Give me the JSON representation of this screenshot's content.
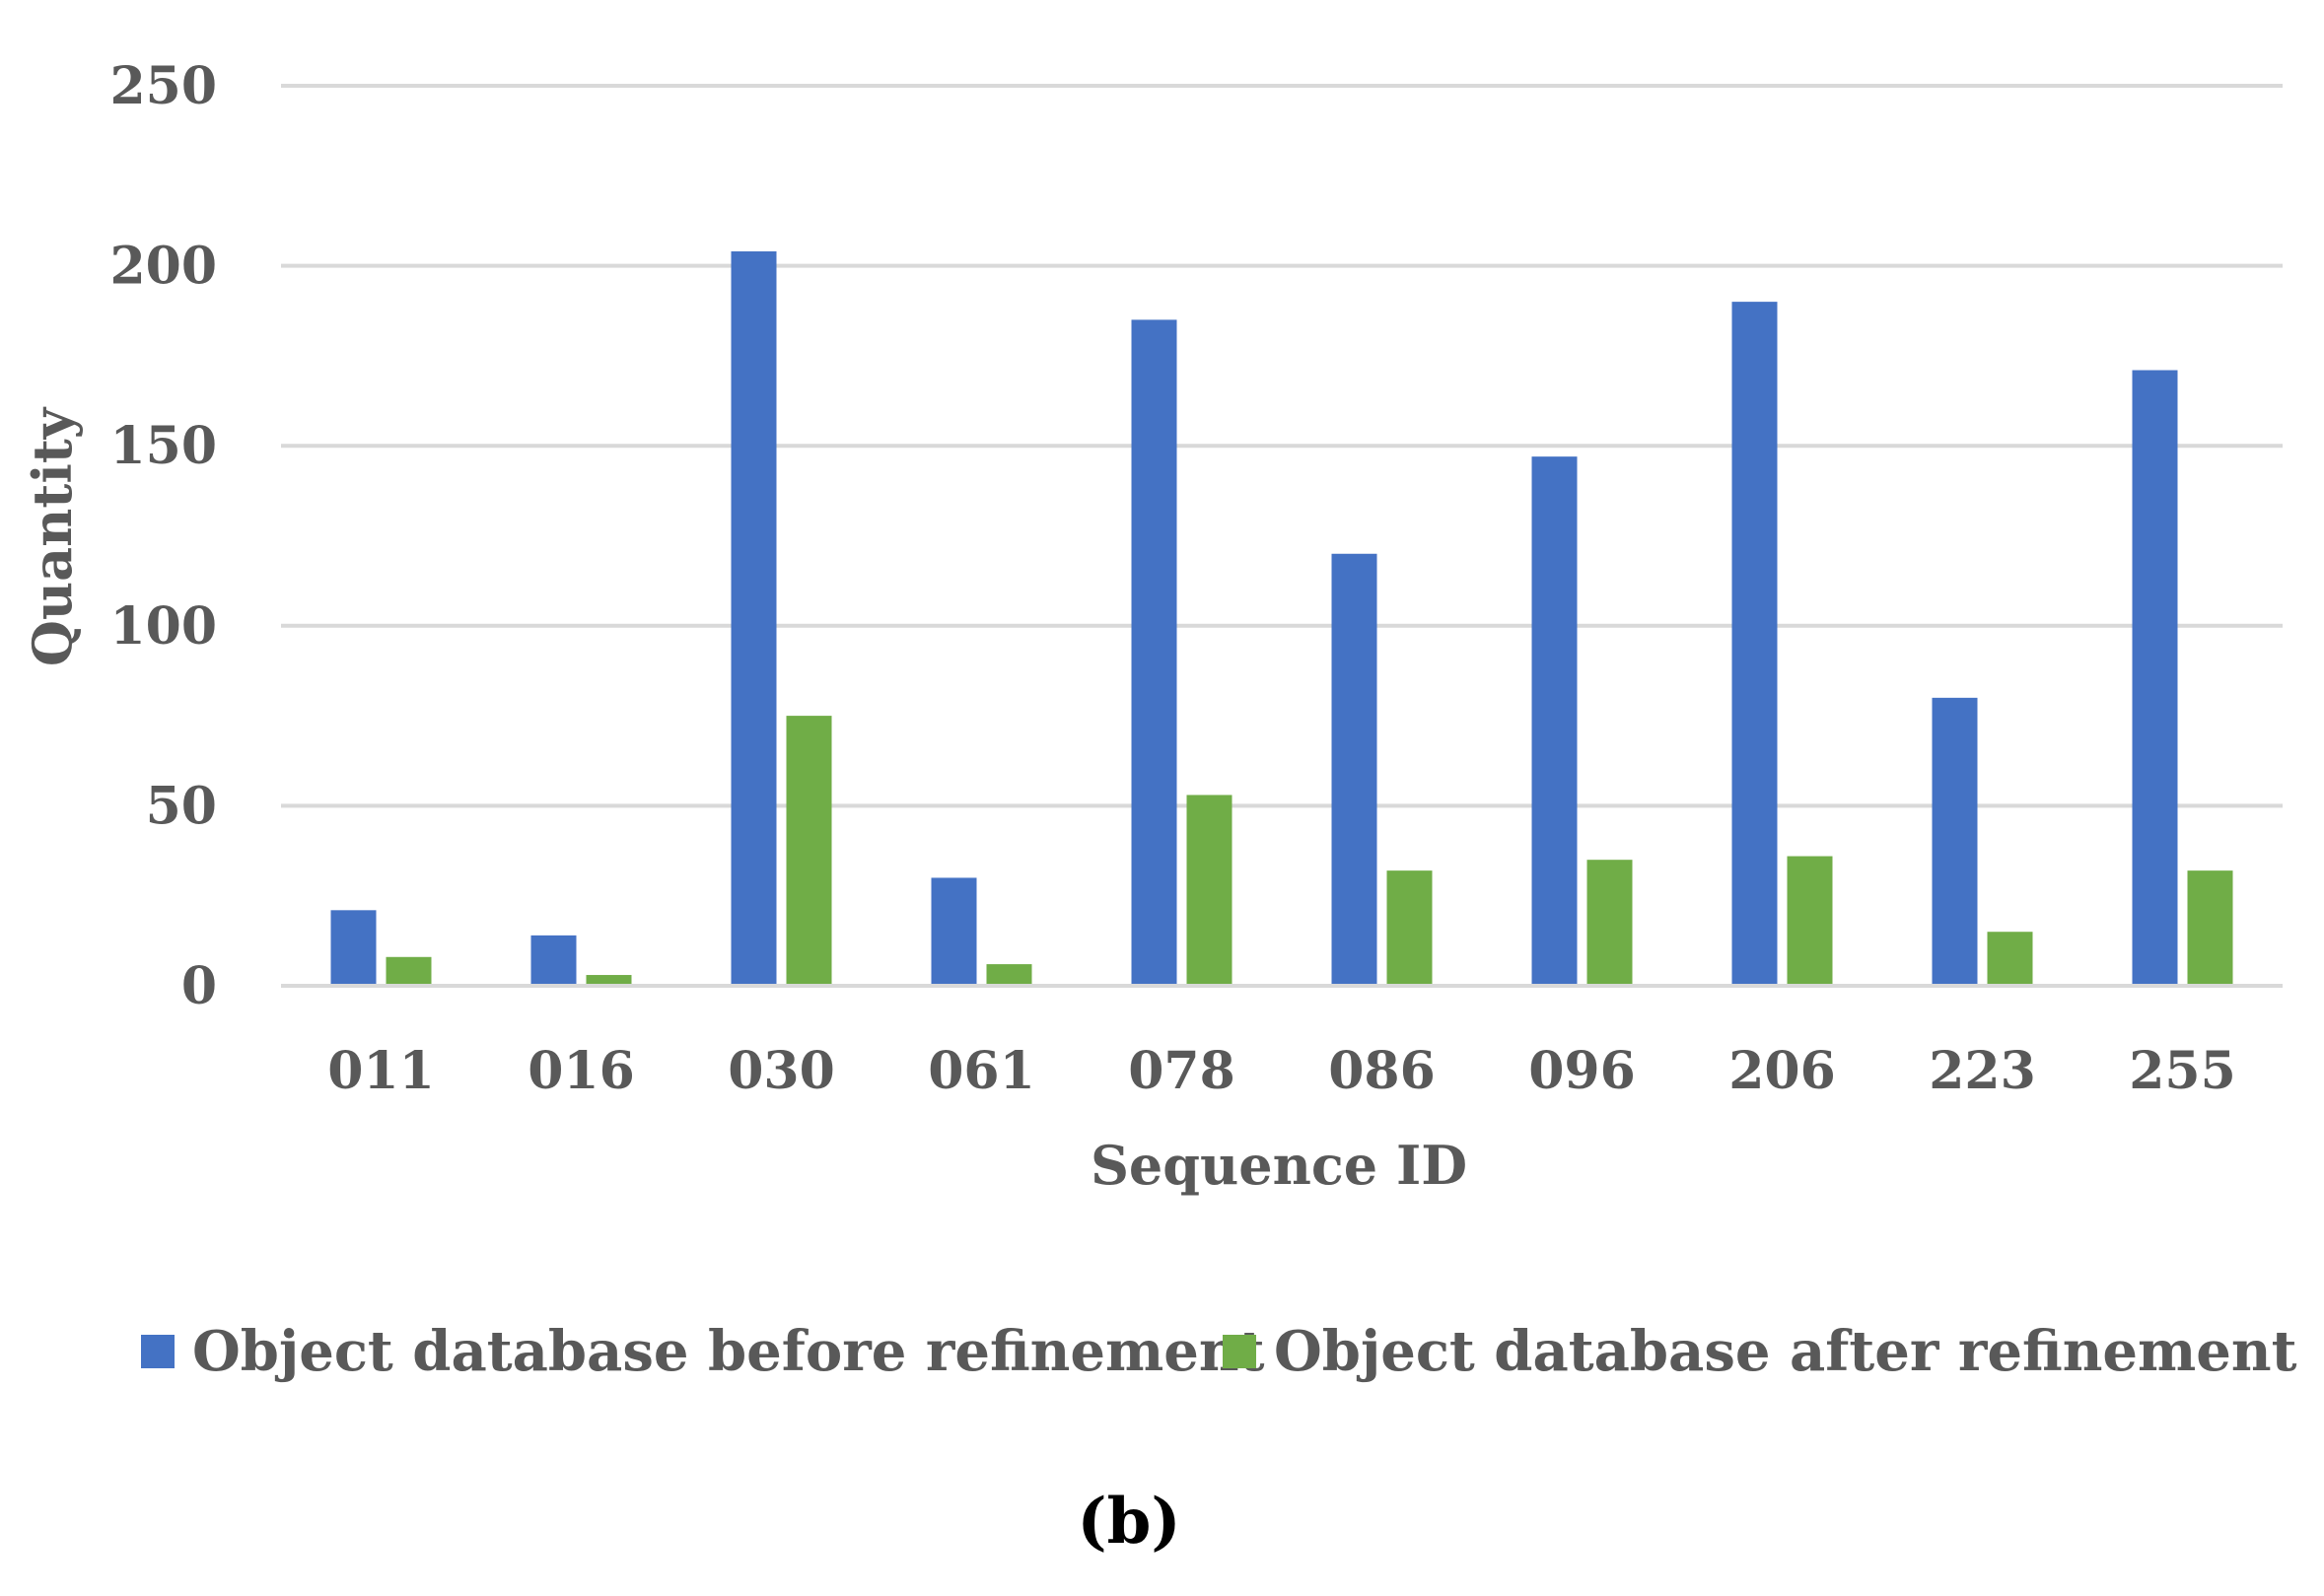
{
  "chart_data": {
    "type": "bar",
    "title": "",
    "xlabel": "Sequence ID",
    "ylabel": "Quantity",
    "categories": [
      "011",
      "016",
      "030",
      "061",
      "078",
      "086",
      "096",
      "206",
      "223",
      "255"
    ],
    "series": [
      {
        "name": "Object database before refinement",
        "color": "#4472c4",
        "values": [
          21,
          14,
          204,
          30,
          185,
          120,
          147,
          190,
          80,
          171
        ]
      },
      {
        "name": "Object database after refinement",
        "color": "#70ad47",
        "values": [
          8,
          3,
          75,
          6,
          53,
          32,
          35,
          36,
          15,
          32
        ]
      }
    ],
    "ylim": [
      0,
      250
    ],
    "yticks": [
      "0",
      "50",
      "100",
      "150",
      "200",
      "250"
    ],
    "grid": true,
    "legend_position": "bottom"
  },
  "panel_label": "(b)"
}
